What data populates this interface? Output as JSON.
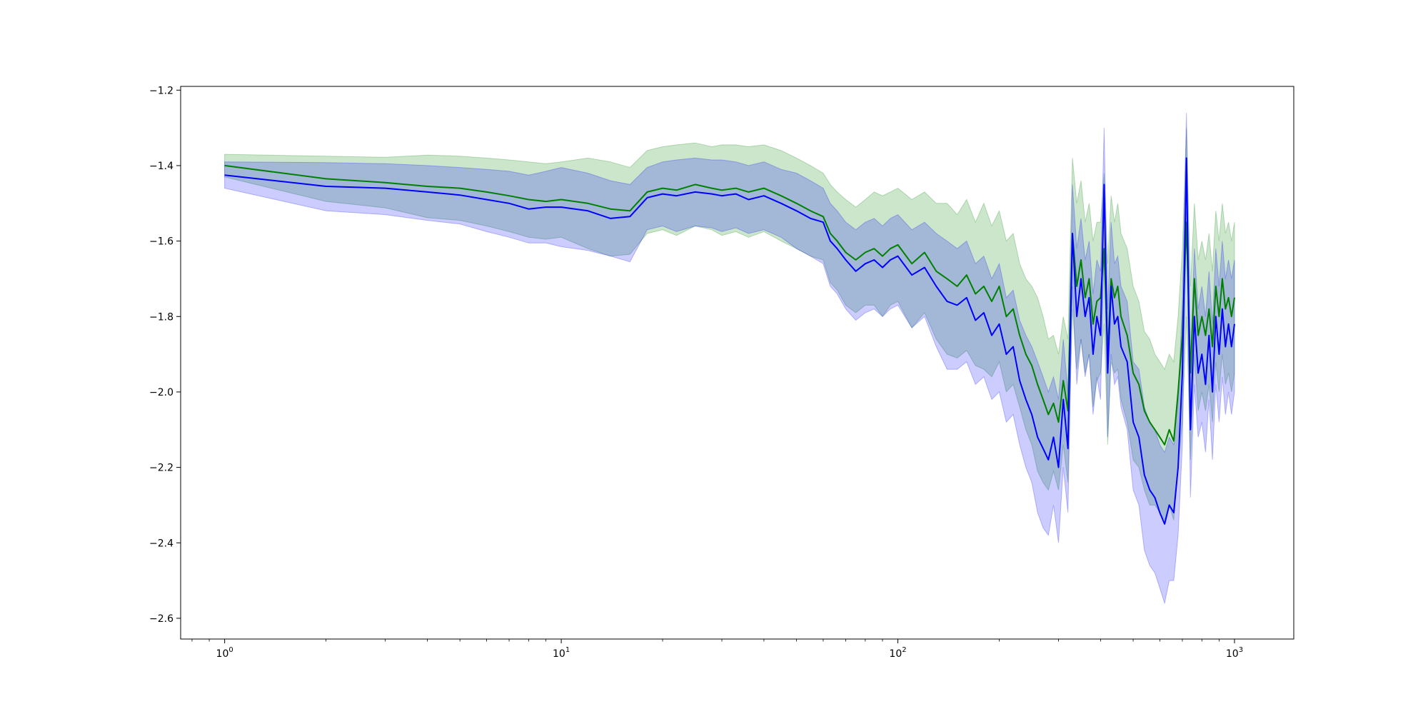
{
  "chart_data": {
    "type": "line",
    "title": "",
    "xlabel": "",
    "ylabel": "",
    "xscale": "log",
    "xlim": [
      0.74,
      1500
    ],
    "ylim": [
      -2.655,
      -1.19
    ],
    "grid": false,
    "legend": "none",
    "x_ticks": [
      {
        "value": 1,
        "base": "10",
        "exp": "0"
      },
      {
        "value": 10,
        "base": "10",
        "exp": "1"
      },
      {
        "value": 100,
        "base": "10",
        "exp": "2"
      },
      {
        "value": 1000,
        "base": "10",
        "exp": "3"
      }
    ],
    "y_ticks": [
      {
        "value": -1.2,
        "label": "−1.2"
      },
      {
        "value": -1.4,
        "label": "−1.4"
      },
      {
        "value": -1.6,
        "label": "−1.6"
      },
      {
        "value": -1.8,
        "label": "−1.8"
      },
      {
        "value": -2.0,
        "label": "−2.0"
      },
      {
        "value": -2.2,
        "label": "−2.2"
      },
      {
        "value": -2.4,
        "label": "−2.4"
      },
      {
        "value": -2.6,
        "label": "−2.6"
      }
    ],
    "series": [
      {
        "color": "#008000",
        "band_color": "#008000",
        "band_opacity": 0.2,
        "x": [
          1,
          2,
          3,
          4,
          5,
          6,
          7,
          8,
          9,
          10,
          12,
          14,
          16,
          18,
          20,
          22,
          25,
          28,
          30,
          33,
          36,
          40,
          45,
          50,
          55,
          60,
          63,
          66,
          70,
          75,
          80,
          85,
          90,
          95,
          100,
          110,
          120,
          130,
          140,
          150,
          160,
          170,
          180,
          190,
          200,
          210,
          220,
          230,
          240,
          250,
          260,
          270,
          280,
          290,
          300,
          310,
          320,
          330,
          340,
          350,
          360,
          370,
          380,
          390,
          400,
          410,
          420,
          430,
          440,
          450,
          460,
          480,
          500,
          520,
          540,
          560,
          580,
          600,
          620,
          640,
          660,
          680,
          700,
          720,
          740,
          760,
          780,
          800,
          820,
          840,
          860,
          880,
          900,
          920,
          940,
          960,
          980,
          1000
        ],
        "y": [
          -1.4,
          -1.435,
          -1.445,
          -1.455,
          -1.46,
          -1.47,
          -1.48,
          -1.49,
          -1.495,
          -1.49,
          -1.5,
          -1.515,
          -1.52,
          -1.47,
          -1.46,
          -1.465,
          -1.45,
          -1.46,
          -1.465,
          -1.46,
          -1.47,
          -1.46,
          -1.48,
          -1.5,
          -1.52,
          -1.535,
          -1.58,
          -1.6,
          -1.63,
          -1.65,
          -1.63,
          -1.62,
          -1.64,
          -1.62,
          -1.61,
          -1.66,
          -1.63,
          -1.68,
          -1.7,
          -1.72,
          -1.69,
          -1.74,
          -1.72,
          -1.76,
          -1.72,
          -1.8,
          -1.78,
          -1.85,
          -1.9,
          -1.93,
          -1.98,
          -2.02,
          -2.06,
          -2.03,
          -2.08,
          -1.97,
          -2.05,
          -1.58,
          -1.72,
          -1.65,
          -1.75,
          -1.7,
          -1.82,
          -1.76,
          -1.75,
          -1.62,
          -1.9,
          -1.7,
          -1.75,
          -1.72,
          -1.8,
          -1.85,
          -1.95,
          -1.98,
          -2.05,
          -2.08,
          -2.1,
          -2.12,
          -2.14,
          -2.1,
          -2.13,
          -2.0,
          -1.85,
          -1.55,
          -1.95,
          -1.7,
          -1.85,
          -1.8,
          -1.85,
          -1.78,
          -1.88,
          -1.72,
          -1.8,
          -1.7,
          -1.78,
          -1.75,
          -1.8,
          -1.75
        ],
        "upper": [
          -1.37,
          -1.375,
          -1.378,
          -1.372,
          -1.375,
          -1.38,
          -1.385,
          -1.39,
          -1.395,
          -1.39,
          -1.38,
          -1.39,
          -1.405,
          -1.36,
          -1.35,
          -1.345,
          -1.34,
          -1.35,
          -1.345,
          -1.345,
          -1.35,
          -1.345,
          -1.36,
          -1.38,
          -1.4,
          -1.42,
          -1.45,
          -1.47,
          -1.49,
          -1.51,
          -1.49,
          -1.47,
          -1.48,
          -1.47,
          -1.46,
          -1.49,
          -1.47,
          -1.5,
          -1.5,
          -1.53,
          -1.49,
          -1.55,
          -1.5,
          -1.56,
          -1.52,
          -1.6,
          -1.58,
          -1.66,
          -1.7,
          -1.72,
          -1.75,
          -1.8,
          -1.86,
          -1.85,
          -1.9,
          -1.8,
          -1.86,
          -1.38,
          -1.5,
          -1.44,
          -1.55,
          -1.5,
          -1.6,
          -1.55,
          -1.55,
          -1.42,
          -1.66,
          -1.48,
          -1.55,
          -1.5,
          -1.58,
          -1.62,
          -1.72,
          -1.76,
          -1.84,
          -1.86,
          -1.9,
          -1.92,
          -1.94,
          -1.9,
          -1.92,
          -1.8,
          -1.62,
          -1.3,
          -1.72,
          -1.5,
          -1.65,
          -1.6,
          -1.65,
          -1.58,
          -1.68,
          -1.52,
          -1.6,
          -1.5,
          -1.58,
          -1.55,
          -1.6,
          -1.55
        ],
        "lower": [
          -1.43,
          -1.495,
          -1.512,
          -1.538,
          -1.545,
          -1.56,
          -1.575,
          -1.59,
          -1.595,
          -1.59,
          -1.62,
          -1.64,
          -1.635,
          -1.58,
          -1.57,
          -1.585,
          -1.56,
          -1.57,
          -1.585,
          -1.575,
          -1.59,
          -1.575,
          -1.6,
          -1.62,
          -1.64,
          -1.65,
          -1.71,
          -1.73,
          -1.77,
          -1.79,
          -1.77,
          -1.77,
          -1.8,
          -1.77,
          -1.76,
          -1.83,
          -1.79,
          -1.86,
          -1.9,
          -1.91,
          -1.89,
          -1.93,
          -1.94,
          -1.96,
          -1.92,
          -2.0,
          -1.98,
          -2.04,
          -2.1,
          -2.14,
          -2.21,
          -2.24,
          -2.26,
          -2.21,
          -2.26,
          -2.14,
          -2.24,
          -1.78,
          -1.94,
          -1.86,
          -1.95,
          -1.9,
          -2.04,
          -1.97,
          -1.95,
          -1.82,
          -2.14,
          -1.92,
          -1.95,
          -1.94,
          -2.02,
          -2.08,
          -2.18,
          -2.2,
          -2.26,
          -2.3,
          -2.3,
          -2.32,
          -2.34,
          -2.3,
          -2.34,
          -2.2,
          -2.08,
          -1.8,
          -2.18,
          -1.9,
          -2.05,
          -2.0,
          -2.05,
          -1.98,
          -2.08,
          -1.92,
          -2.0,
          -1.9,
          -1.98,
          -1.95,
          -2.0,
          -1.95
        ]
      },
      {
        "color": "#0000ff",
        "band_color": "#0000ff",
        "band_opacity": 0.2,
        "x": [
          1,
          2,
          3,
          4,
          5,
          6,
          7,
          8,
          9,
          10,
          12,
          14,
          16,
          18,
          20,
          22,
          25,
          28,
          30,
          33,
          36,
          40,
          45,
          50,
          55,
          60,
          63,
          66,
          70,
          75,
          80,
          85,
          90,
          95,
          100,
          110,
          120,
          130,
          140,
          150,
          160,
          170,
          180,
          190,
          200,
          210,
          220,
          230,
          240,
          250,
          260,
          270,
          280,
          290,
          300,
          310,
          320,
          330,
          340,
          350,
          360,
          370,
          380,
          390,
          400,
          410,
          420,
          430,
          440,
          450,
          460,
          480,
          500,
          520,
          540,
          560,
          580,
          600,
          620,
          640,
          660,
          680,
          700,
          720,
          740,
          760,
          780,
          800,
          820,
          840,
          860,
          880,
          900,
          920,
          940,
          960,
          980,
          1000
        ],
        "y": [
          -1.425,
          -1.455,
          -1.46,
          -1.47,
          -1.478,
          -1.49,
          -1.5,
          -1.515,
          -1.51,
          -1.51,
          -1.52,
          -1.54,
          -1.535,
          -1.485,
          -1.475,
          -1.48,
          -1.47,
          -1.475,
          -1.48,
          -1.475,
          -1.49,
          -1.48,
          -1.5,
          -1.52,
          -1.54,
          -1.55,
          -1.6,
          -1.62,
          -1.65,
          -1.68,
          -1.66,
          -1.65,
          -1.67,
          -1.65,
          -1.64,
          -1.69,
          -1.67,
          -1.72,
          -1.76,
          -1.77,
          -1.75,
          -1.81,
          -1.79,
          -1.85,
          -1.82,
          -1.9,
          -1.88,
          -1.97,
          -2.02,
          -2.06,
          -2.12,
          -2.15,
          -2.18,
          -2.12,
          -2.2,
          -2.02,
          -2.15,
          -1.58,
          -1.8,
          -1.7,
          -1.8,
          -1.75,
          -1.9,
          -1.8,
          -1.85,
          -1.45,
          -1.95,
          -1.72,
          -1.82,
          -1.8,
          -1.88,
          -1.92,
          -2.08,
          -2.12,
          -2.22,
          -2.26,
          -2.28,
          -2.32,
          -2.35,
          -2.3,
          -2.32,
          -2.2,
          -1.95,
          -1.38,
          -2.1,
          -1.8,
          -1.95,
          -1.9,
          -1.98,
          -1.85,
          -2.0,
          -1.8,
          -1.9,
          -1.78,
          -1.88,
          -1.82,
          -1.88,
          -1.82
        ],
        "upper": [
          -1.39,
          -1.392,
          -1.395,
          -1.4,
          -1.405,
          -1.41,
          -1.415,
          -1.425,
          -1.415,
          -1.405,
          -1.42,
          -1.44,
          -1.45,
          -1.405,
          -1.39,
          -1.385,
          -1.38,
          -1.385,
          -1.385,
          -1.39,
          -1.4,
          -1.39,
          -1.41,
          -1.42,
          -1.44,
          -1.46,
          -1.5,
          -1.52,
          -1.55,
          -1.57,
          -1.55,
          -1.54,
          -1.56,
          -1.54,
          -1.53,
          -1.57,
          -1.55,
          -1.58,
          -1.6,
          -1.62,
          -1.6,
          -1.66,
          -1.64,
          -1.7,
          -1.66,
          -1.75,
          -1.73,
          -1.81,
          -1.85,
          -1.88,
          -1.92,
          -1.96,
          -2.0,
          -1.96,
          -2.02,
          -1.86,
          -2.0,
          -1.45,
          -1.62,
          -1.54,
          -1.65,
          -1.6,
          -1.74,
          -1.65,
          -1.68,
          -1.3,
          -1.78,
          -1.55,
          -1.66,
          -1.64,
          -1.72,
          -1.76,
          -1.92,
          -1.94,
          -2.04,
          -2.08,
          -2.1,
          -2.14,
          -2.16,
          -2.12,
          -2.14,
          -2.02,
          -1.76,
          -1.26,
          -1.92,
          -1.62,
          -1.78,
          -1.72,
          -1.8,
          -1.68,
          -1.82,
          -1.62,
          -1.72,
          -1.6,
          -1.7,
          -1.65,
          -1.7,
          -1.65
        ],
        "lower": [
          -1.46,
          -1.52,
          -1.53,
          -1.545,
          -1.555,
          -1.575,
          -1.59,
          -1.605,
          -1.605,
          -1.615,
          -1.625,
          -1.64,
          -1.655,
          -1.57,
          -1.56,
          -1.575,
          -1.56,
          -1.565,
          -1.575,
          -1.565,
          -1.58,
          -1.57,
          -1.59,
          -1.62,
          -1.64,
          -1.66,
          -1.72,
          -1.74,
          -1.78,
          -1.81,
          -1.79,
          -1.78,
          -1.8,
          -1.78,
          -1.77,
          -1.83,
          -1.8,
          -1.88,
          -1.94,
          -1.94,
          -1.92,
          -1.98,
          -1.96,
          -2.02,
          -2.0,
          -2.08,
          -2.06,
          -2.14,
          -2.2,
          -2.24,
          -2.32,
          -2.36,
          -2.38,
          -2.3,
          -2.4,
          -2.2,
          -2.32,
          -1.72,
          -1.98,
          -1.86,
          -1.96,
          -1.9,
          -2.06,
          -1.96,
          -2.02,
          -1.62,
          -2.12,
          -1.9,
          -1.98,
          -1.96,
          -2.04,
          -2.1,
          -2.26,
          -2.3,
          -2.42,
          -2.46,
          -2.48,
          -2.52,
          -2.56,
          -2.5,
          -2.5,
          -2.38,
          -2.14,
          -1.52,
          -2.28,
          -1.98,
          -2.12,
          -2.08,
          -2.16,
          -2.02,
          -2.18,
          -1.98,
          -2.08,
          -1.96,
          -2.06,
          -2.0,
          -2.06,
          -2.0
        ]
      }
    ]
  }
}
